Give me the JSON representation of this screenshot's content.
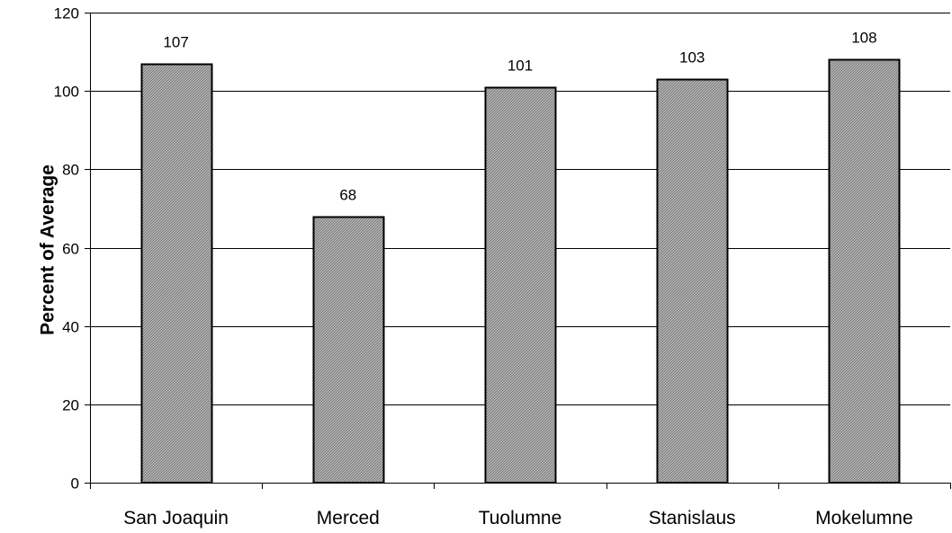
{
  "chart_data": {
    "type": "bar",
    "title": "",
    "xlabel": "",
    "ylabel": "Percent of Average",
    "categories": [
      "San Joaquin",
      "Merced",
      "Tuolumne",
      "Stanislaus",
      "Mokelumne"
    ],
    "values": [
      107,
      68,
      101,
      103,
      108
    ],
    "data_labels": [
      "107",
      "68",
      "101",
      "103",
      "108"
    ],
    "ylim": [
      0,
      120
    ],
    "yticks": [
      0,
      20,
      40,
      60,
      80,
      100,
      120
    ],
    "ytick_labels": [
      "0",
      "20",
      "40",
      "60",
      "80",
      "100",
      "120"
    ],
    "grid": true,
    "legend": "none",
    "colors": {
      "bar_fill": "#b4b4b4",
      "bar_hatch": "#7a7a7a",
      "bar_outline": "#000000",
      "gridline": "#000000",
      "axis": "#000000"
    }
  }
}
